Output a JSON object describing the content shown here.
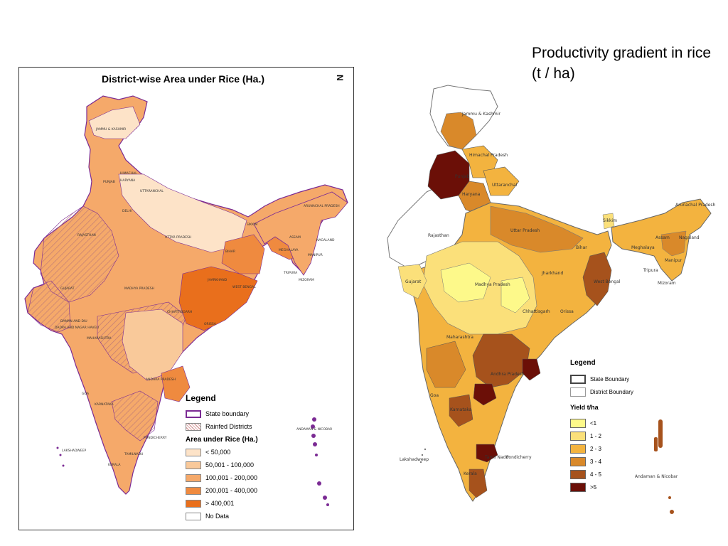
{
  "slide": {
    "title": "Productivity gradient in rice (t / ha)"
  },
  "left_map": {
    "title": "District-wise Area under Rice (Ha.)",
    "north_symbol": "N",
    "region_labels": [
      "JAMMU & KASHMIR",
      "HIMACHAL",
      "PUNJAB",
      "HARYANA",
      "UTTARANCHAL",
      "DELHI",
      "RAJASTHAN",
      "UTTAR PRADESH",
      "BIHAR",
      "SIKKIM",
      "ARUNACHAL PRADESH",
      "ASSAM",
      "MEGHALAYA",
      "NAGALAND",
      "MANIPUR",
      "TRIPURA",
      "MIZORAM",
      "JHARKHAND",
      "WEST BENGAL",
      "GUJARAT",
      "MADHYA PRADESH",
      "CHHATTISGARH",
      "ORISSA",
      "DAMAN AND DIU",
      "DADRA AND NAGAR HAVELI",
      "MAHARASHTRA",
      "ANDHRA PRADESH",
      "GOA",
      "KARNATAKA",
      "LAKSHADWEEP",
      "KERALA",
      "TAMILNADU",
      "PONDICHERRY",
      "ANDAMAN & NICOBAR"
    ],
    "legend": {
      "title": "Legend",
      "state_boundary": "State boundary",
      "rainfed": "Rainfed Districts",
      "area_title": "Area under Rice (Ha.)",
      "classes": [
        {
          "label": "< 50,000",
          "color": "#fde3c8"
        },
        {
          "label": "50,001 - 100,000",
          "color": "#f9c99a"
        },
        {
          "label": "100,001 - 200,000",
          "color": "#f5a96a"
        },
        {
          "label": "200,001 - 400,000",
          "color": "#ef8a3f"
        },
        {
          "label": "> 400,001",
          "color": "#e96f1c"
        },
        {
          "label": "No Data",
          "color": "#ffffff"
        }
      ],
      "boundary_color": "#7b2b94"
    }
  },
  "right_map": {
    "region_labels": [
      "Jammu & Kashmir",
      "Himachal Pradesh",
      "Punjab",
      "Haryana",
      "Uttaranchal",
      "Rajasthan",
      "Uttar Pradesh",
      "Bihar",
      "Sikkim",
      "Arunachal Pradesh",
      "Assam",
      "Nagaland",
      "Meghalaya",
      "Manipur",
      "Tripura",
      "Mizoram",
      "Jharkhand",
      "West Bengal",
      "Gujarat",
      "Madhya Pradesh",
      "Chhattisgarh",
      "Orissa",
      "Maharashtra",
      "Andhra Pradesh",
      "Goa",
      "Karnataka",
      "Lakshadweep",
      "Pondicherry",
      "Tamil Nadu",
      "Kerala",
      "Andaman & Nicobar"
    ],
    "legend": {
      "title": "Legend",
      "state_boundary": "State Boundary",
      "district_boundary": "District Boundary",
      "yield_title": "Yield t/ha",
      "classes": [
        {
          "label": "<1",
          "color": "#fdf98a"
        },
        {
          "label": "1 - 2",
          "color": "#fbe07a"
        },
        {
          "label": "2 - 3",
          "color": "#f3b33f"
        },
        {
          "label": "3 - 4",
          "color": "#d9892a"
        },
        {
          "label": "4 - 5",
          "color": "#a6521c"
        },
        {
          "label": ">5",
          "color": "#6b0f07"
        }
      ]
    }
  }
}
